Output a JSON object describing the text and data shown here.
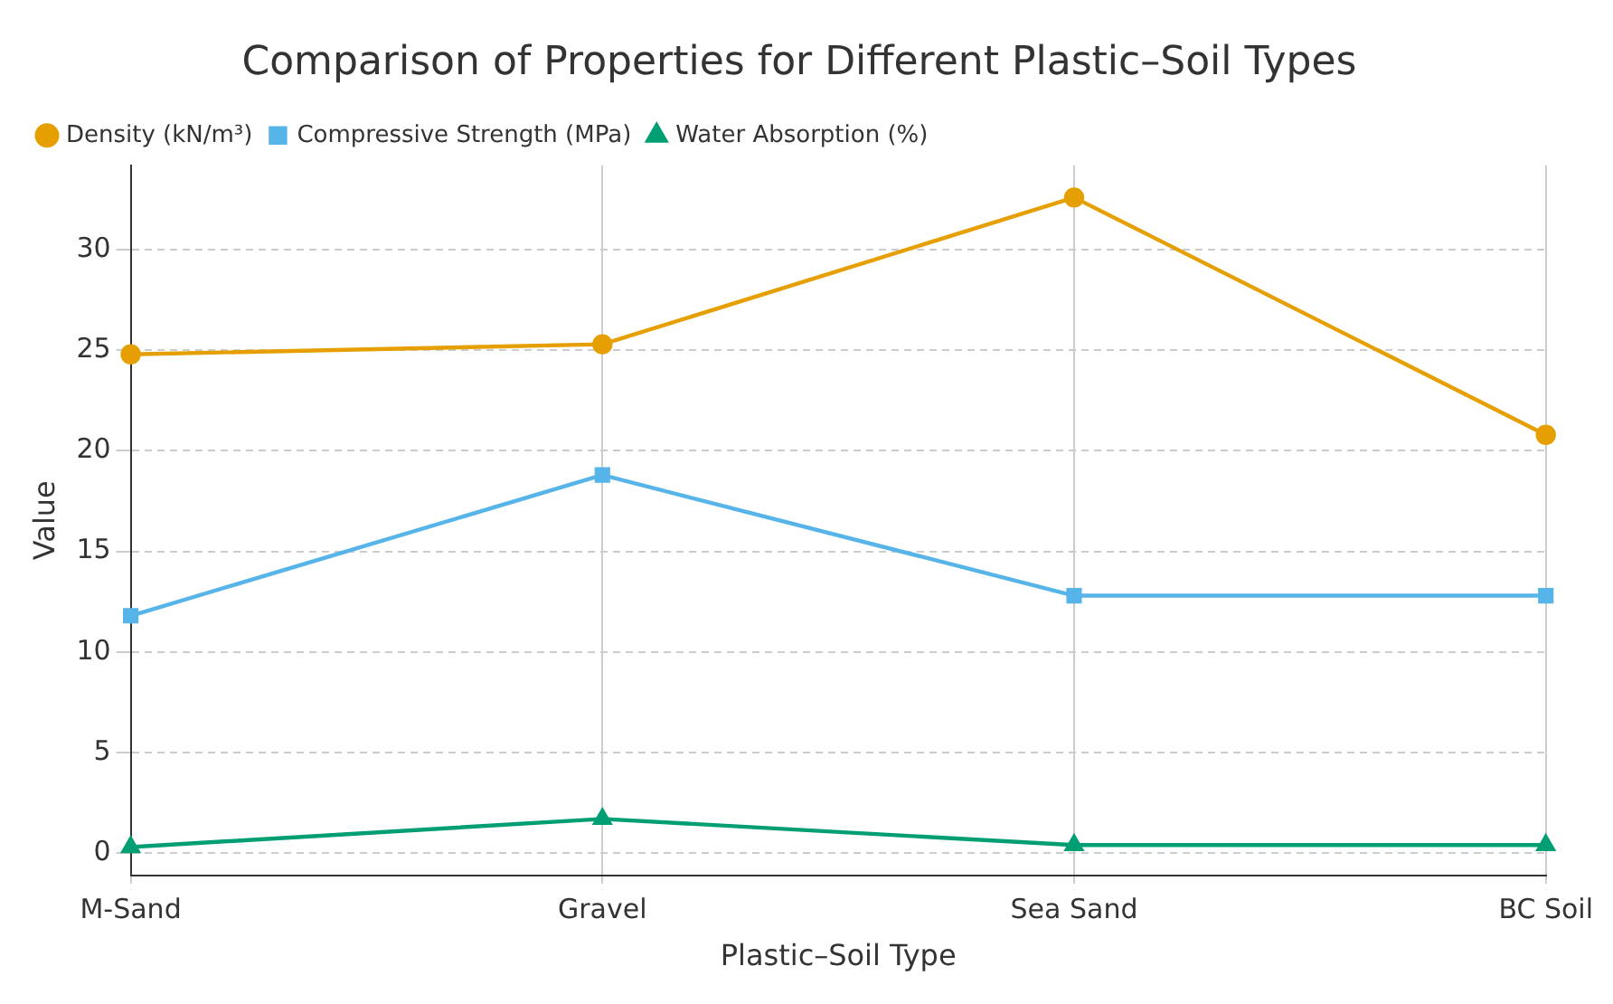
{
  "chart_data": {
    "type": "line",
    "title": "Comparison of Properties for Different Plastic–Soil Types",
    "xlabel": "Plastic–Soil Type",
    "ylabel": "Value",
    "categories": [
      "M-Sand",
      "Gravel",
      "Sea Sand",
      "BC Soil"
    ],
    "series": [
      {
        "name": "Density (kN/m³)",
        "color": "#e69f00",
        "marker": "circle",
        "values": [
          24.8,
          25.3,
          32.6,
          20.8
        ]
      },
      {
        "name": "Compressive Strength (MPa)",
        "color": "#56b4e9",
        "marker": "square",
        "values": [
          11.8,
          18.8,
          12.8,
          12.8
        ]
      },
      {
        "name": "Water Absorption (%)",
        "color": "#009e73",
        "marker": "triangle",
        "values": [
          0.3,
          1.7,
          0.4,
          0.4
        ]
      }
    ],
    "ylim": [
      -1.1,
      34.2
    ],
    "yticks": [
      0,
      5,
      10,
      15,
      20,
      25,
      30
    ],
    "grid": true,
    "legend": "top left",
    "line_style": "solid"
  }
}
